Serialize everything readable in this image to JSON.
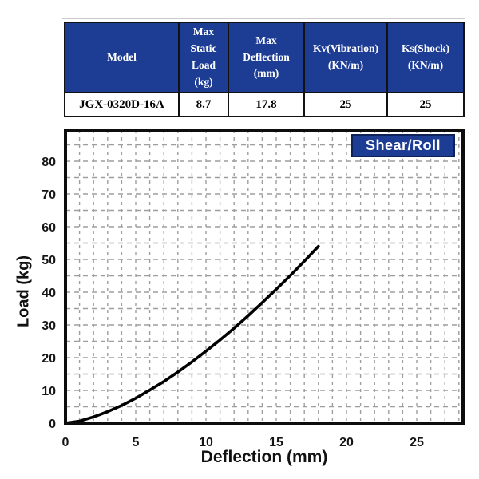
{
  "spec_table": {
    "headers": [
      "Model",
      "Max\nStatic\nLoad\n(kg)",
      "Max\nDeflection\n(mm)",
      "Kv(Vibration)\n(KN/m)",
      "Ks(Shock)\n(KN/m)"
    ],
    "row": [
      "JGX-0320D-16A",
      "8.7",
      "17.8",
      "25",
      "25"
    ]
  },
  "chart_data": {
    "type": "line",
    "title": "",
    "xlabel": "Deflection (mm)",
    "ylabel": "Load (kg)",
    "legend_position": "top-right",
    "xlim": [
      0,
      28
    ],
    "ylim": [
      0,
      89
    ],
    "x_ticks": [
      0,
      5,
      10,
      15,
      20,
      25
    ],
    "y_ticks": [
      0,
      10,
      20,
      30,
      40,
      50,
      60,
      70,
      80
    ],
    "grid": {
      "on": true,
      "style": "dashed",
      "x_step": 1,
      "y_step": 5
    },
    "series": [
      {
        "name": "Shear/Roll",
        "x": [
          0,
          1,
          2,
          3,
          4,
          5,
          6,
          7,
          8,
          9,
          10,
          11,
          12,
          13,
          14,
          15,
          16,
          17,
          18
        ],
        "y": [
          0,
          0.6,
          1.9,
          3.5,
          5.4,
          7.6,
          10.1,
          12.7,
          15.6,
          18.7,
          22.0,
          25.4,
          29.0,
          32.8,
          36.8,
          40.9,
          45.1,
          49.5,
          54.0
        ]
      }
    ]
  },
  "colors": {
    "table_header_bg": "#1d3c94",
    "legend_bg": "#1d3c94",
    "grid": "#9e9e9e",
    "curve": "#000000",
    "frame": "#0d0d0d",
    "tick_text": "#151515"
  }
}
